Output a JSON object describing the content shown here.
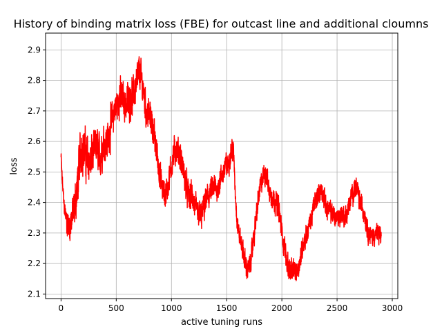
{
  "chart_data": {
    "type": "line",
    "title": "History of binding matrix loss (FBE) for outcast line and additional cloumns",
    "xlabel": "active tuning runs",
    "ylabel": "loss",
    "xlim": [
      -140,
      3050
    ],
    "ylim": [
      2.085,
      2.955
    ],
    "xticks": [
      0,
      500,
      1000,
      1500,
      2000,
      2500,
      3000
    ],
    "yticks": [
      2.1,
      2.2,
      2.3,
      2.4,
      2.5,
      2.6,
      2.7,
      2.8,
      2.9
    ],
    "grid": true,
    "series": [
      {
        "color": "#ff0000",
        "trend": [
          [
            0,
            2.55
          ],
          [
            10,
            2.48
          ],
          [
            25,
            2.4
          ],
          [
            40,
            2.36
          ],
          [
            55,
            2.33
          ],
          [
            70,
            2.32
          ],
          [
            90,
            2.34
          ],
          [
            110,
            2.36
          ],
          [
            130,
            2.4
          ],
          [
            150,
            2.46
          ],
          [
            170,
            2.55
          ],
          [
            190,
            2.58
          ],
          [
            210,
            2.57
          ],
          [
            230,
            2.55
          ],
          [
            250,
            2.54
          ],
          [
            270,
            2.53
          ],
          [
            290,
            2.56
          ],
          [
            310,
            2.58
          ],
          [
            330,
            2.57
          ],
          [
            350,
            2.55
          ],
          [
            370,
            2.57
          ],
          [
            390,
            2.6
          ],
          [
            410,
            2.6
          ],
          [
            430,
            2.61
          ],
          [
            450,
            2.65
          ],
          [
            470,
            2.68
          ],
          [
            490,
            2.71
          ],
          [
            510,
            2.72
          ],
          [
            530,
            2.75
          ],
          [
            550,
            2.74
          ],
          [
            570,
            2.73
          ],
          [
            590,
            2.72
          ],
          [
            610,
            2.73
          ],
          [
            630,
            2.74
          ],
          [
            650,
            2.75
          ],
          [
            670,
            2.77
          ],
          [
            690,
            2.8
          ],
          [
            710,
            2.83
          ],
          [
            730,
            2.8
          ],
          [
            750,
            2.76
          ],
          [
            770,
            2.7
          ],
          [
            790,
            2.69
          ],
          [
            810,
            2.68
          ],
          [
            830,
            2.65
          ],
          [
            850,
            2.6
          ],
          [
            870,
            2.56
          ],
          [
            890,
            2.5
          ],
          [
            910,
            2.46
          ],
          [
            930,
            2.43
          ],
          [
            950,
            2.43
          ],
          [
            970,
            2.46
          ],
          [
            990,
            2.5
          ],
          [
            1010,
            2.54
          ],
          [
            1030,
            2.57
          ],
          [
            1050,
            2.57
          ],
          [
            1070,
            2.56
          ],
          [
            1090,
            2.53
          ],
          [
            1110,
            2.5
          ],
          [
            1130,
            2.46
          ],
          [
            1150,
            2.43
          ],
          [
            1170,
            2.42
          ],
          [
            1190,
            2.42
          ],
          [
            1210,
            2.39
          ],
          [
            1230,
            2.37
          ],
          [
            1250,
            2.36
          ],
          [
            1270,
            2.35
          ],
          [
            1290,
            2.38
          ],
          [
            1310,
            2.4
          ],
          [
            1330,
            2.42
          ],
          [
            1350,
            2.43
          ],
          [
            1370,
            2.44
          ],
          [
            1390,
            2.45
          ],
          [
            1410,
            2.44
          ],
          [
            1430,
            2.46
          ],
          [
            1450,
            2.48
          ],
          [
            1470,
            2.5
          ],
          [
            1490,
            2.52
          ],
          [
            1510,
            2.52
          ],
          [
            1530,
            2.55
          ],
          [
            1550,
            2.58
          ],
          [
            1565,
            2.55
          ],
          [
            1580,
            2.42
          ],
          [
            1595,
            2.34
          ],
          [
            1610,
            2.3
          ],
          [
            1630,
            2.27
          ],
          [
            1650,
            2.24
          ],
          [
            1670,
            2.2
          ],
          [
            1690,
            2.18
          ],
          [
            1710,
            2.19
          ],
          [
            1730,
            2.24
          ],
          [
            1750,
            2.3
          ],
          [
            1770,
            2.36
          ],
          [
            1790,
            2.42
          ],
          [
            1810,
            2.46
          ],
          [
            1830,
            2.48
          ],
          [
            1850,
            2.5
          ],
          [
            1870,
            2.47
          ],
          [
            1890,
            2.43
          ],
          [
            1910,
            2.42
          ],
          [
            1930,
            2.41
          ],
          [
            1950,
            2.4
          ],
          [
            1970,
            2.38
          ],
          [
            1990,
            2.33
          ],
          [
            2010,
            2.28
          ],
          [
            2030,
            2.24
          ],
          [
            2050,
            2.2
          ],
          [
            2070,
            2.18
          ],
          [
            2090,
            2.17
          ],
          [
            2110,
            2.18
          ],
          [
            2130,
            2.17
          ],
          [
            2150,
            2.19
          ],
          [
            2170,
            2.22
          ],
          [
            2190,
            2.26
          ],
          [
            2210,
            2.28
          ],
          [
            2230,
            2.3
          ],
          [
            2250,
            2.33
          ],
          [
            2270,
            2.35
          ],
          [
            2290,
            2.39
          ],
          [
            2310,
            2.41
          ],
          [
            2330,
            2.43
          ],
          [
            2350,
            2.44
          ],
          [
            2370,
            2.43
          ],
          [
            2390,
            2.4
          ],
          [
            2410,
            2.38
          ],
          [
            2430,
            2.37
          ],
          [
            2450,
            2.37
          ],
          [
            2470,
            2.36
          ],
          [
            2490,
            2.35
          ],
          [
            2510,
            2.35
          ],
          [
            2530,
            2.36
          ],
          [
            2550,
            2.36
          ],
          [
            2570,
            2.35
          ],
          [
            2590,
            2.36
          ],
          [
            2610,
            2.39
          ],
          [
            2630,
            2.42
          ],
          [
            2650,
            2.44
          ],
          [
            2670,
            2.45
          ],
          [
            2690,
            2.43
          ],
          [
            2710,
            2.4
          ],
          [
            2730,
            2.38
          ],
          [
            2750,
            2.36
          ],
          [
            2770,
            2.32
          ],
          [
            2790,
            2.3
          ],
          [
            2810,
            2.29
          ],
          [
            2830,
            2.29
          ],
          [
            2850,
            2.3
          ],
          [
            2870,
            2.29
          ],
          [
            2890,
            2.3
          ],
          [
            2900,
            2.28
          ]
        ],
        "noise_bands": [
          [
            0,
            0.02
          ],
          [
            150,
            0.08
          ],
          [
            500,
            0.06
          ],
          [
            700,
            0.06
          ],
          [
            800,
            0.05
          ],
          [
            1100,
            0.05
          ],
          [
            1500,
            0.04
          ],
          [
            1600,
            0.035
          ],
          [
            2000,
            0.04
          ],
          [
            2300,
            0.035
          ],
          [
            2900,
            0.035
          ]
        ]
      }
    ]
  }
}
